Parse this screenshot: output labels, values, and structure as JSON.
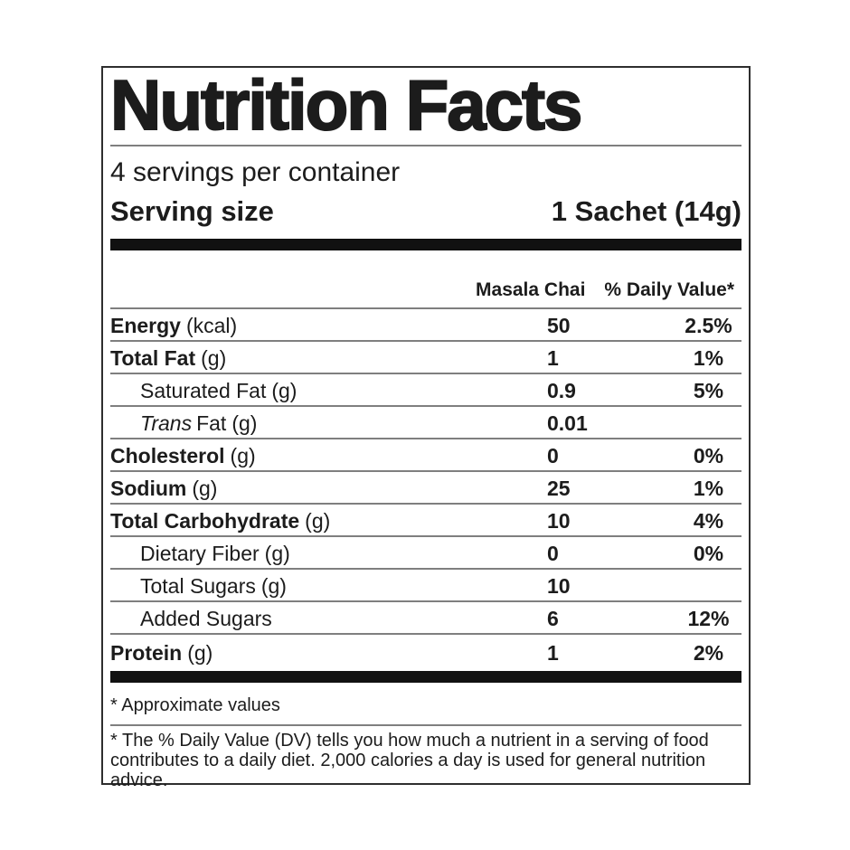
{
  "label": {
    "title": "Nutrition Facts",
    "servings_per_container": "4 servings per container",
    "serving_size": {
      "label": "Serving size",
      "value": "1 Sachet (14g)"
    },
    "columns": {
      "product": "Masala Chai",
      "daily_value": "% Daily Value*"
    },
    "rows": [
      {
        "name": "Energy",
        "unit": "(kcal)",
        "amount": "50",
        "dv": "2.5%"
      },
      {
        "name": "Total Fat",
        "unit": "(g)",
        "amount": "1",
        "dv": "1%"
      },
      {
        "name": "Saturated Fat",
        "unit": "(g)",
        "amount": "0.9",
        "dv": "5%"
      },
      {
        "name_italic": "Trans",
        "name": "Fat",
        "unit": "(g)",
        "amount": "0.01",
        "dv": ""
      },
      {
        "name": "Cholesterol",
        "unit": "(g)",
        "amount": "0",
        "dv": "0%"
      },
      {
        "name": "Sodium",
        "unit": "(g)",
        "amount": "25",
        "dv": "1%"
      },
      {
        "name": "Total Carbohydrate",
        "unit": "(g)",
        "amount": "10",
        "dv": "4%"
      },
      {
        "name": "Dietary Fiber",
        "unit": "(g)",
        "amount": "0",
        "dv": "0%"
      },
      {
        "name": "Total Sugars",
        "unit": "(g)",
        "amount": "10",
        "dv": ""
      },
      {
        "name": "Added Sugars",
        "unit": "",
        "amount": "6",
        "dv": "12%"
      },
      {
        "name": "Protein",
        "unit": "(g)",
        "amount": "1",
        "dv": "2%"
      }
    ],
    "footnotes": {
      "approximate": "* Approximate values",
      "daily_value": "* The % Daily Value (DV) tells you how much a nutrient in a serving of food contributes to a daily diet. 2,000 calories a day is used for general nutrition advice."
    },
    "colors": {
      "text": "#1c1c1c",
      "thick_bar": "#111111",
      "rule_gray": "#7f7f7f"
    }
  }
}
